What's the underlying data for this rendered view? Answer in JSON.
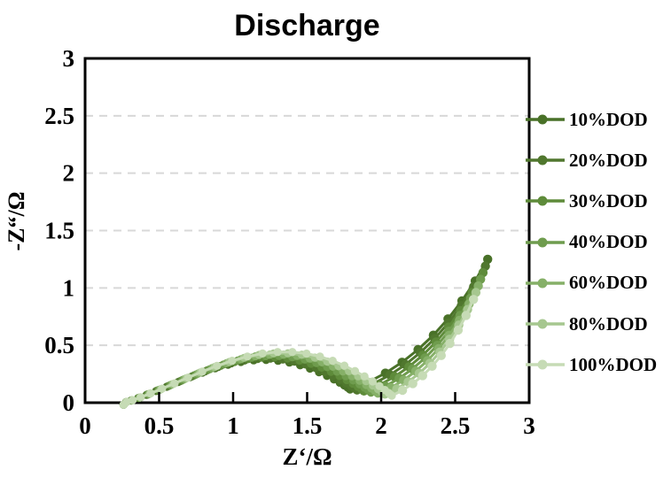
{
  "title": "Discharge",
  "chart_data": {
    "type": "scatter",
    "subtype": "nyquist-EIS",
    "title": "Discharge",
    "xlabel": "Z‘/Ω",
    "ylabel": "-Z“/Ω",
    "xlim": [
      0,
      3
    ],
    "ylim": [
      0,
      3
    ],
    "x_tick_labels": [
      "0",
      "0.5",
      "1",
      "1.5",
      "2",
      "2.5",
      "3"
    ],
    "y_tick_labels": [
      "0",
      "0.5",
      "1",
      "1.5",
      "2",
      "2.5",
      "3"
    ],
    "x_ticks": [
      0,
      0.5,
      1,
      1.5,
      2,
      2.5,
      3
    ],
    "y_ticks": [
      0,
      0.5,
      1,
      1.5,
      2,
      2.5,
      3
    ],
    "grid": {
      "horizontal": true,
      "vertical": false,
      "style": "dashed",
      "color": "#d8d8d8",
      "at": [
        0.5,
        1,
        1.5,
        2,
        2.5
      ]
    },
    "legend_position": "right",
    "shape_note": "each series: depressed semicircle from start up to apex, down to dip, then rising diffusion tail ending at tail_end (x,y in ohms)",
    "series": [
      {
        "name": "10%DOD",
        "color": "#497128",
        "start": [
          0.26,
          0
        ],
        "apex": [
          1.17,
          0.36
        ],
        "dip": [
          1.79,
          0.115
        ],
        "tail_end": [
          2.72,
          1.25
        ]
      },
      {
        "name": "20%DOD",
        "color": "#50772e",
        "start": [
          0.26,
          0
        ],
        "apex": [
          1.215,
          0.373
        ],
        "dip": [
          1.837,
          0.106
        ],
        "tail_end": [
          2.704,
          1.19
        ]
      },
      {
        "name": "30%DOD",
        "color": "#5e8b3a",
        "start": [
          0.26,
          0
        ],
        "apex": [
          1.26,
          0.386
        ],
        "dip": [
          1.884,
          0.097
        ],
        "tail_end": [
          2.688,
          1.133
        ]
      },
      {
        "name": "40%DOD",
        "color": "#6f9c4e",
        "start": [
          0.26,
          0
        ],
        "apex": [
          1.305,
          0.399
        ],
        "dip": [
          1.931,
          0.088
        ],
        "tail_end": [
          2.672,
          1.075
        ]
      },
      {
        "name": "60%DOD",
        "color": "#86b068",
        "start": [
          0.26,
          0
        ],
        "apex": [
          1.35,
          0.412
        ],
        "dip": [
          1.978,
          0.079
        ],
        "tail_end": [
          2.656,
          1.017
        ]
      },
      {
        "name": "80%DOD",
        "color": "#a6c78f",
        "start": [
          0.26,
          0
        ],
        "apex": [
          1.395,
          0.425
        ],
        "dip": [
          2.025,
          0.07
        ],
        "tail_end": [
          2.64,
          0.96
        ]
      },
      {
        "name": "100%DOD",
        "color": "#c6dbb5",
        "start": [
          0.26,
          0
        ],
        "apex": [
          1.44,
          0.438
        ],
        "dip": [
          2.072,
          0.061
        ],
        "tail_end": [
          2.624,
          0.9
        ]
      }
    ]
  },
  "colors": {
    "axis": "#000000",
    "gridline": "#d8d8d8",
    "background": "#ffffff",
    "text": "#000000"
  }
}
